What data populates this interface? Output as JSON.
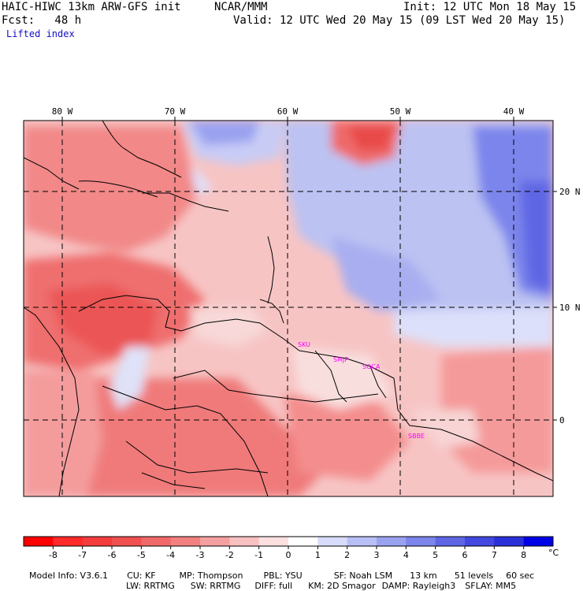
{
  "header": {
    "model": "HAIC-HIWC 13km ARW-GFS init",
    "org": "NCAR/MMM",
    "init": "Init: 12 UTC Mon 18 May 15",
    "fcst": "Fcst:   48 h",
    "valid": "Valid: 12 UTC Wed 20 May 15 (09 LST Wed 20 May 15)",
    "field": "Lifted index"
  },
  "map": {
    "lon_labels": [
      "80 W",
      "70 W",
      "60 W",
      "50 W",
      "40 W"
    ],
    "lat_labels": [
      "20 N",
      "10 N",
      "0"
    ],
    "stations": [
      "SKU",
      "SMJP",
      "SOCA",
      "SBBE"
    ]
  },
  "colorbar": {
    "ticks": [
      "-8",
      "-7",
      "-6",
      "-5",
      "-4",
      "-3",
      "-2",
      "-1",
      "0",
      "1",
      "2",
      "3",
      "4",
      "5",
      "6",
      "7",
      "8"
    ],
    "unit": "°C",
    "colors": [
      "#ff0000",
      "#ff2a2a",
      "#f53c3c",
      "#f05050",
      "#f06868",
      "#f28080",
      "#f5a0a0",
      "#f8c0c0",
      "#fce0e0",
      "#ffffff",
      "#d8dcfa",
      "#b8bff5",
      "#9aa2f0",
      "#7c85eb",
      "#5e66e4",
      "#4248e0",
      "#2a30d8",
      "#0000e6"
    ]
  },
  "footer": {
    "line1": [
      "Model Info: V3.6.1",
      "CU: KF",
      "MP: Thompson",
      "PBL: YSU",
      "SF: Noah LSM",
      "13 km",
      "51 levels",
      "60 sec"
    ],
    "line2": [
      "LW: RRTMG",
      "SW: RRTMG",
      "DIFF: full",
      "KM: 2D Smagor",
      "DAMP: Rayleigh3",
      "SFLAY: MM5"
    ]
  }
}
